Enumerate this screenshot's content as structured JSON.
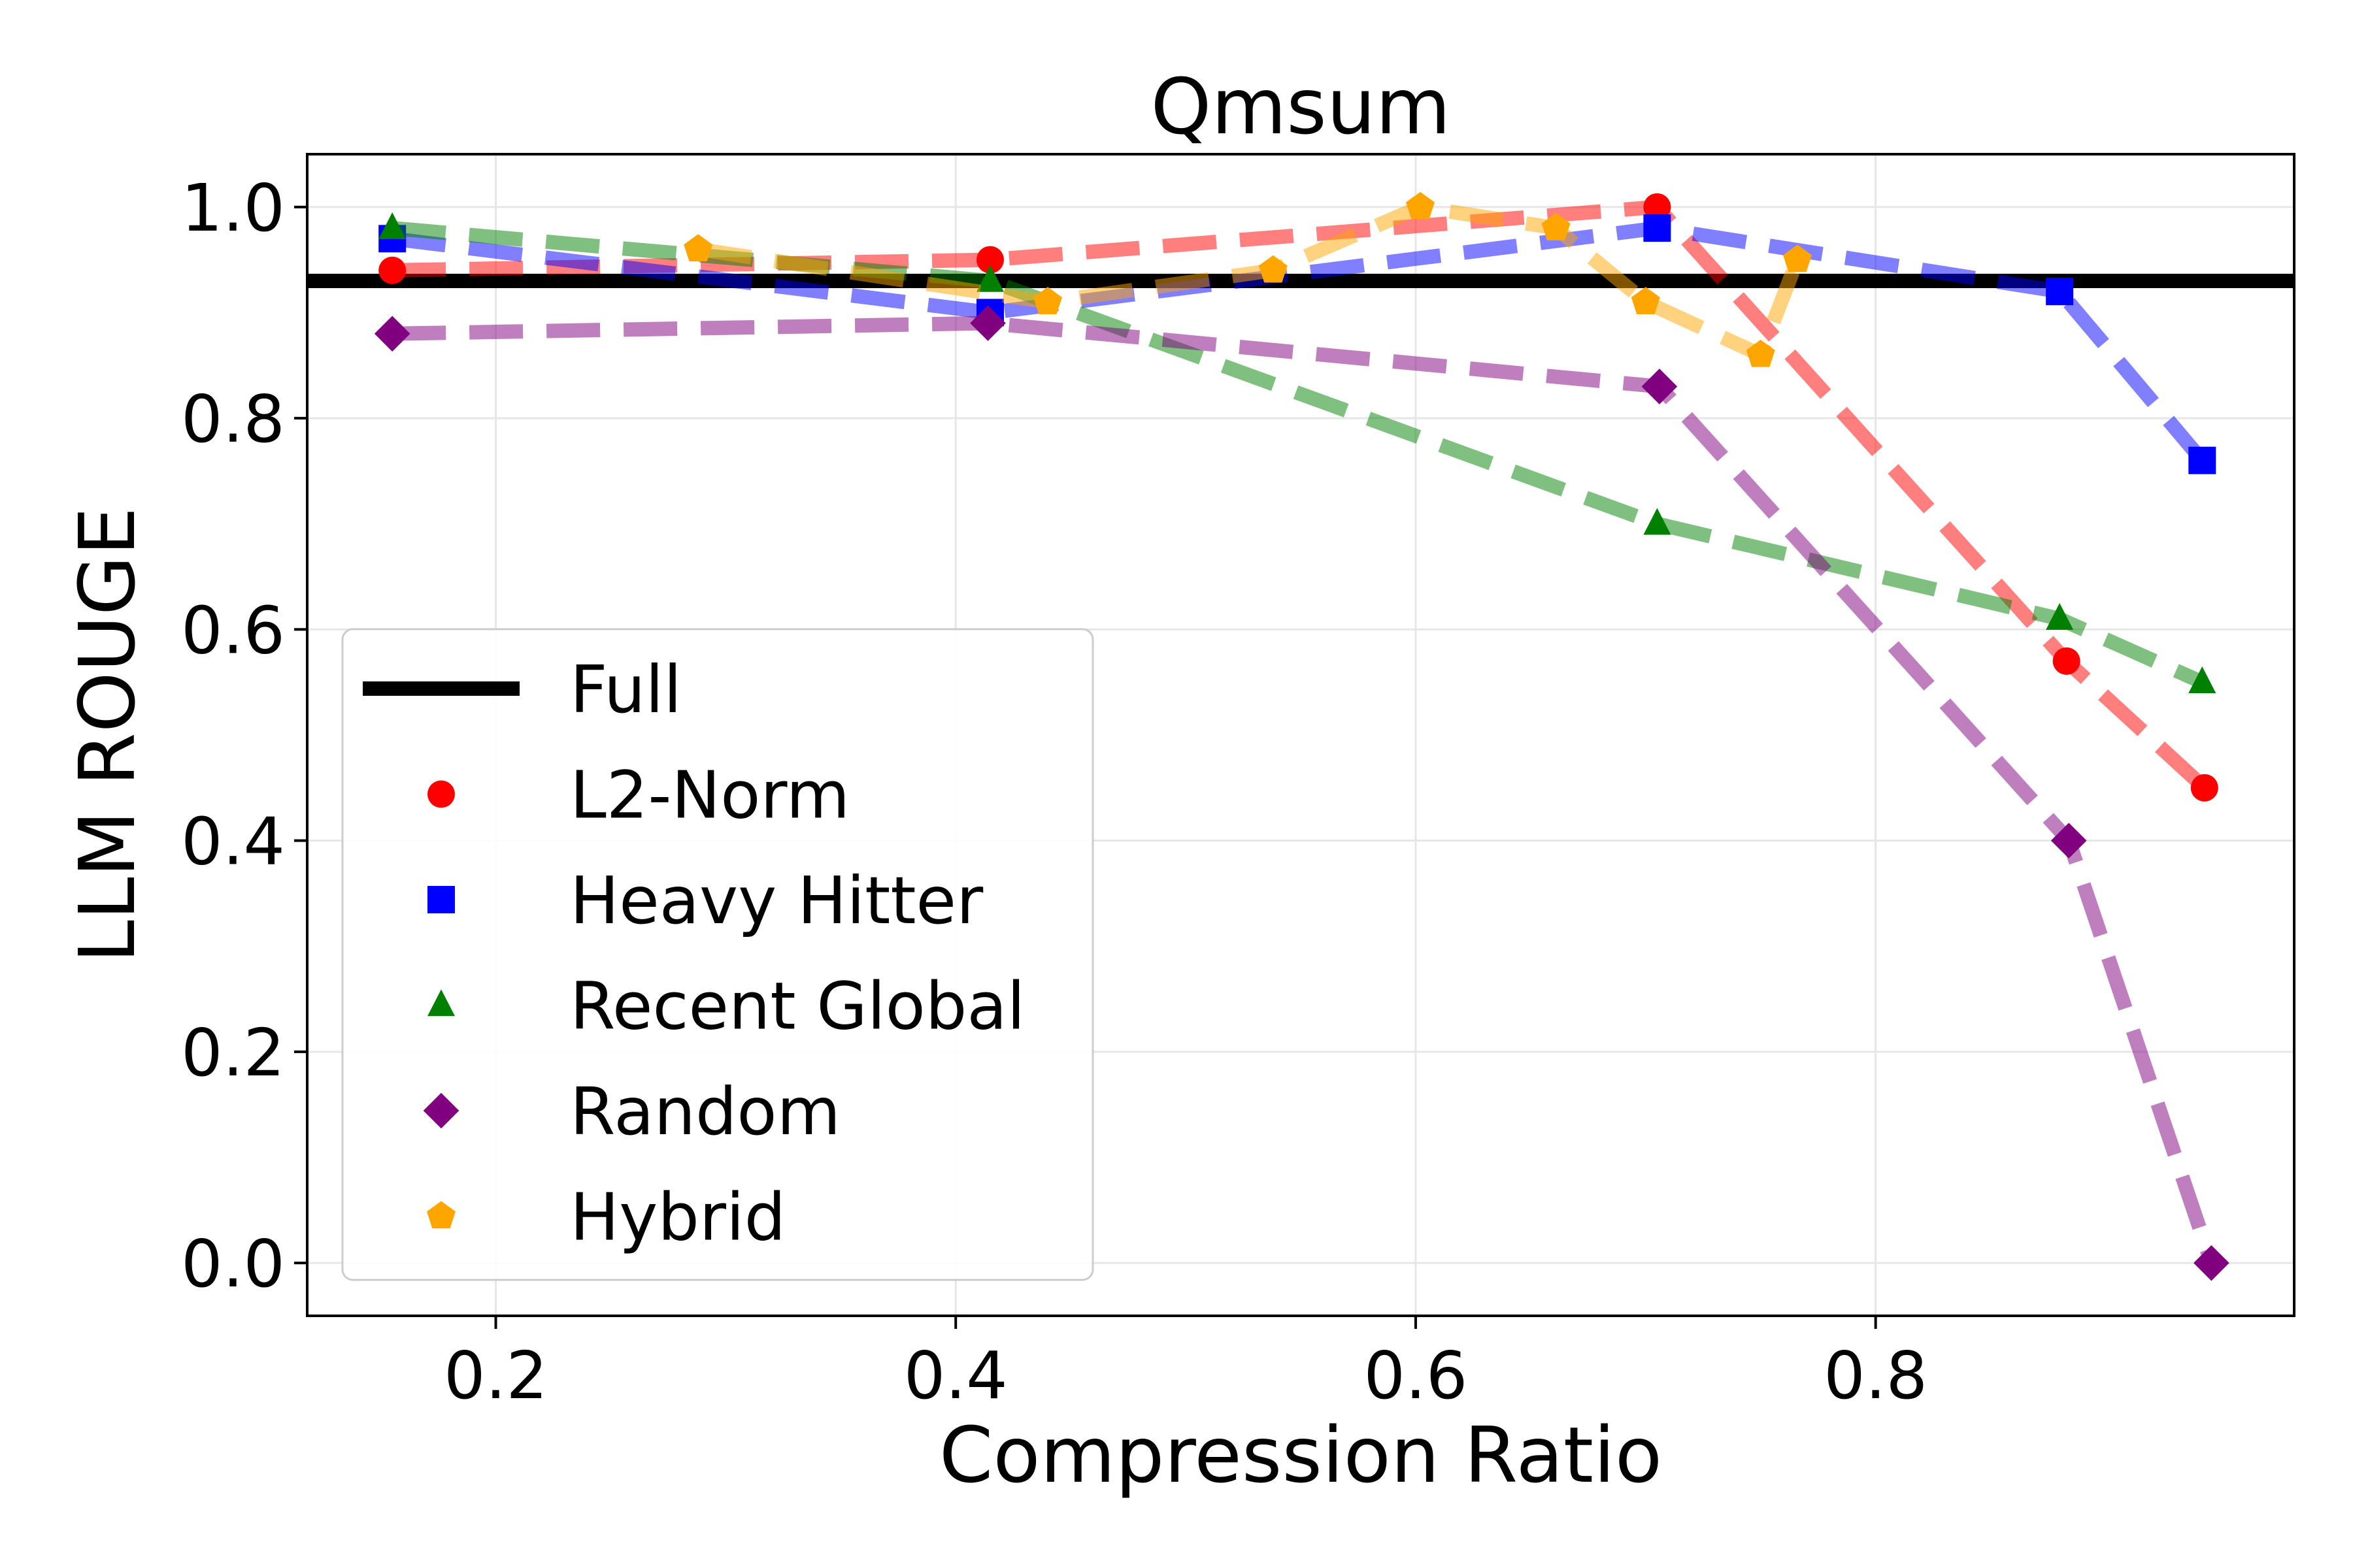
{
  "chart_data": {
    "type": "line",
    "title": "Qmsum",
    "xlabel": "Compression Ratio",
    "ylabel": "LLM ROUGE",
    "xlim": [
      0.118,
      0.982
    ],
    "ylim": [
      -0.05,
      1.05
    ],
    "xticks": [
      "0.2",
      "0.4",
      "0.6",
      "0.8"
    ],
    "yticks": [
      "0.0",
      "0.2",
      "0.4",
      "0.6",
      "0.8",
      "1.0"
    ],
    "grid": true,
    "legend_position": "lower-left",
    "baseline": {
      "name": "Full",
      "value": 0.93,
      "color": "#000000"
    },
    "series": [
      {
        "name": "L2-Norm",
        "color": "#ff0000",
        "marker": "circle",
        "x": [
          0.155,
          0.415,
          0.705,
          0.883,
          0.943
        ],
        "y": [
          0.94,
          0.95,
          1.0,
          0.57,
          0.45
        ]
      },
      {
        "name": "Heavy Hitter",
        "color": "#0000ff",
        "marker": "square",
        "x": [
          0.155,
          0.415,
          0.705,
          0.88,
          0.942
        ],
        "y": [
          0.97,
          0.9,
          0.98,
          0.92,
          0.76
        ]
      },
      {
        "name": "Recent Global",
        "color": "#008000",
        "marker": "triangle",
        "x": [
          0.155,
          0.415,
          0.705,
          0.88,
          0.942
        ],
        "y": [
          0.98,
          0.93,
          0.7,
          0.61,
          0.55
        ]
      },
      {
        "name": "Random",
        "color": "#800080",
        "marker": "diamond",
        "x": [
          0.155,
          0.414,
          0.706,
          0.884,
          0.946
        ],
        "y": [
          0.88,
          0.89,
          0.83,
          0.4,
          0.0
        ]
      },
      {
        "name": "Hybrid",
        "color": "#ffa500",
        "marker": "pentagon",
        "x": [
          0.288,
          0.44,
          0.538,
          0.602,
          0.661,
          0.7,
          0.75,
          0.766
        ],
        "y": [
          0.96,
          0.91,
          0.94,
          1.0,
          0.98,
          0.91,
          0.86,
          0.95
        ]
      }
    ]
  }
}
